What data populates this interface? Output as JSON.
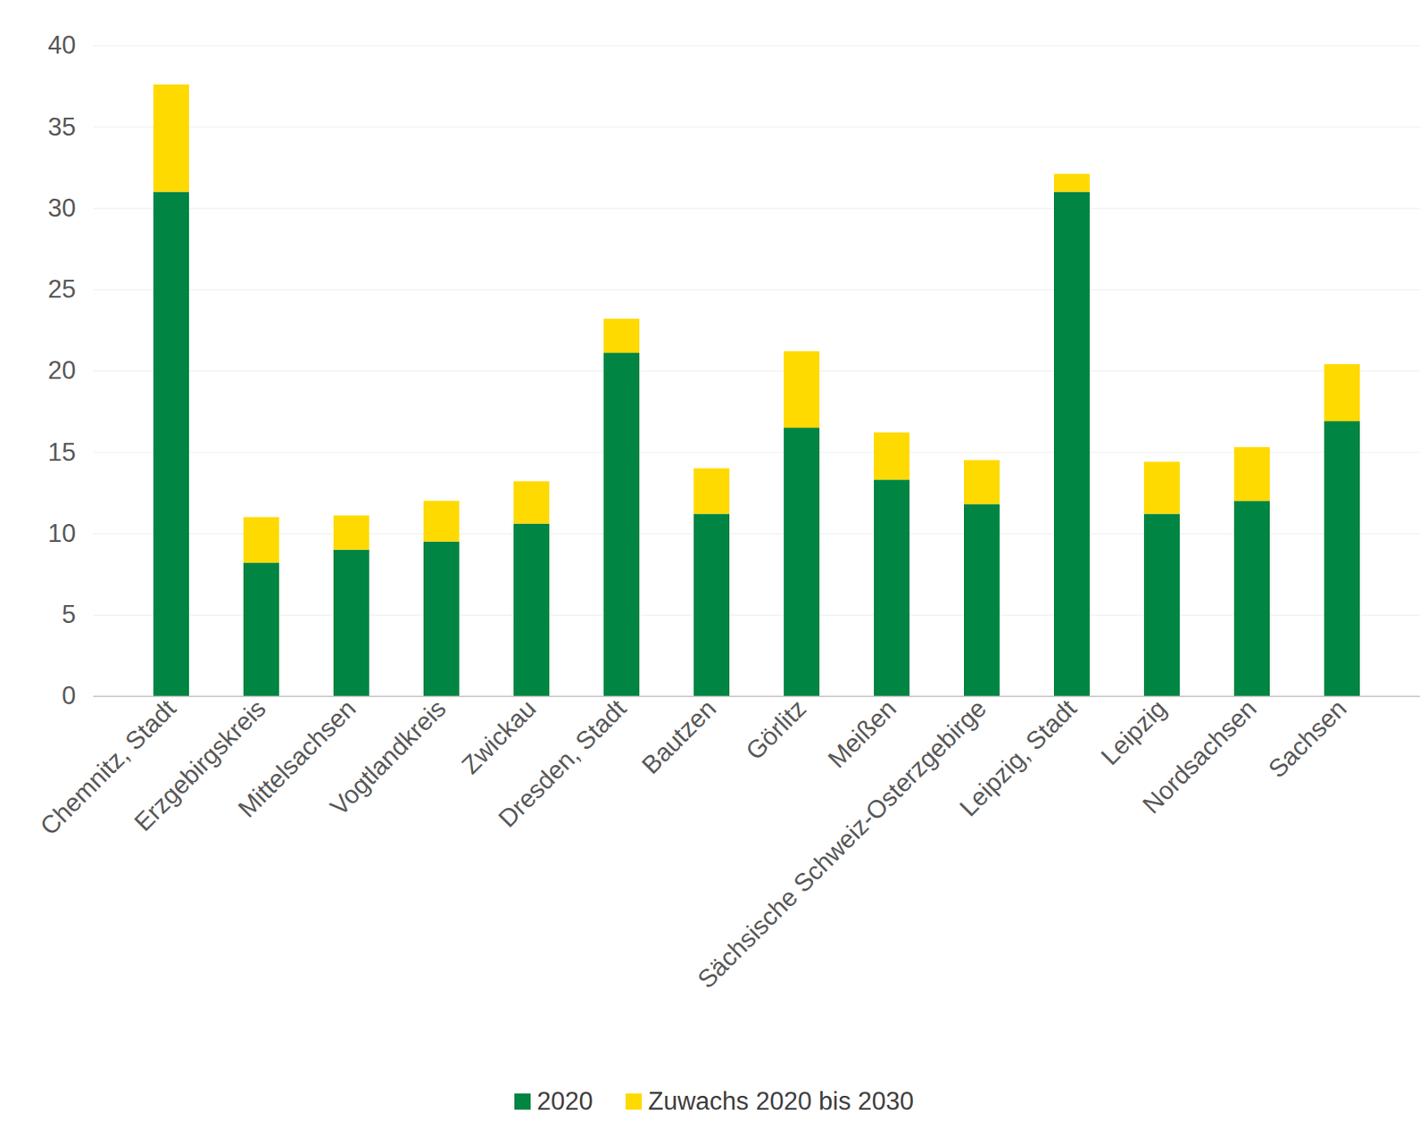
{
  "chart_data": {
    "type": "bar",
    "stacked": true,
    "categories": [
      "Chemnitz, Stadt",
      "Erzgebirgskreis",
      "Mittelsachsen",
      "Vogtlandkreis",
      "Zwickau",
      "Dresden, Stadt",
      "Bautzen",
      "Görlitz",
      "Meißen",
      "Sächsische Schweiz-Osterzgebirge",
      "Leipzig, Stadt",
      "Leipzig",
      "Nordsachsen",
      "Sachsen"
    ],
    "series": [
      {
        "name": "2020",
        "color": "#008542",
        "values": [
          31.0,
          8.2,
          9.0,
          9.5,
          10.6,
          21.1,
          11.2,
          16.5,
          13.3,
          11.8,
          31.0,
          11.2,
          12.0,
          16.9
        ]
      },
      {
        "name": "Zuwachs 2020 bis 2030",
        "color": "#FFDA00",
        "values": [
          6.6,
          2.8,
          2.1,
          2.5,
          2.6,
          2.1,
          2.8,
          4.7,
          2.9,
          2.7,
          1.1,
          3.2,
          3.3,
          3.5
        ]
      }
    ],
    "ylim": [
      0,
      40
    ],
    "yticks": [
      0,
      5,
      10,
      15,
      20,
      25,
      30,
      35,
      40
    ],
    "grid": true,
    "legend": "bottom"
  }
}
